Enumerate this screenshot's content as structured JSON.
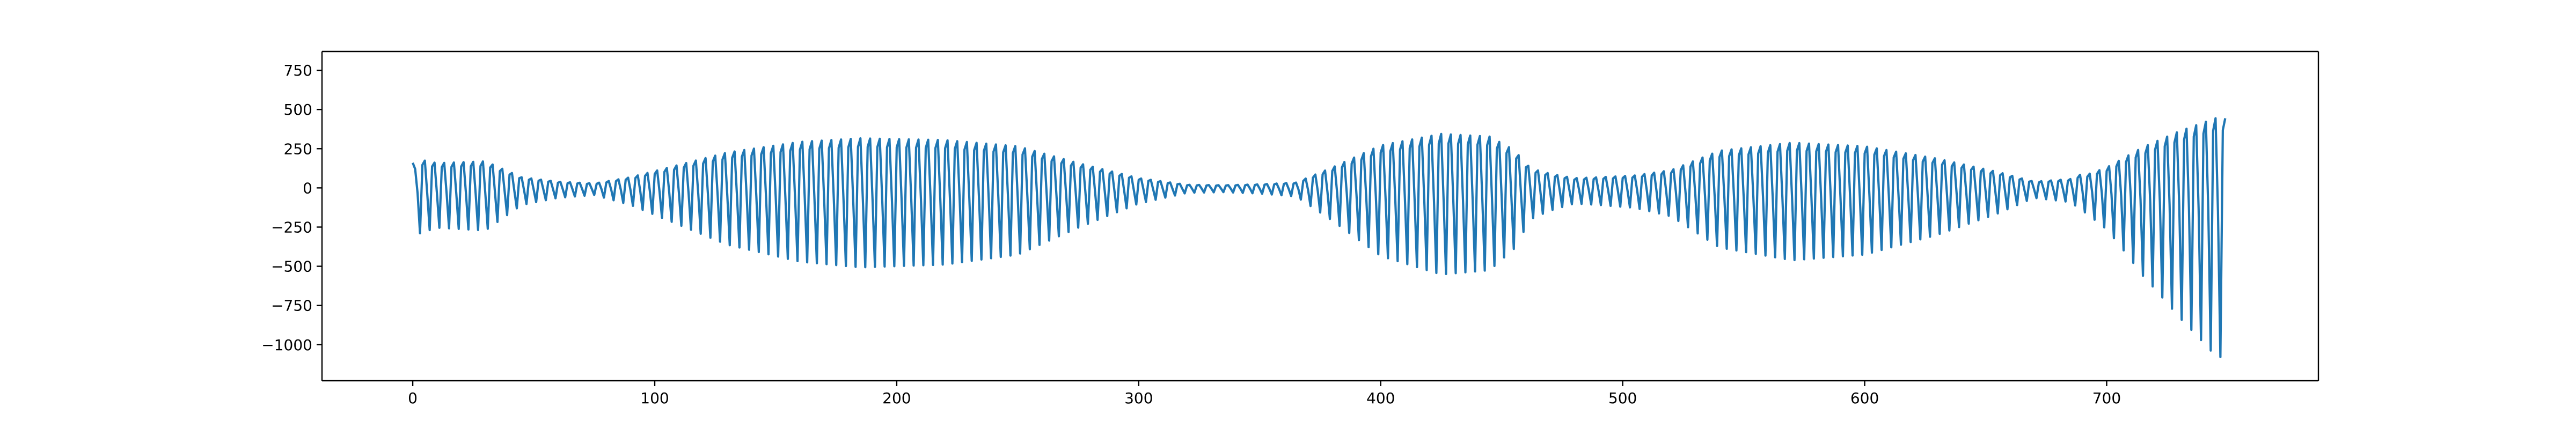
{
  "chart_data": {
    "type": "line",
    "title": "",
    "xlabel": "",
    "ylabel": "",
    "xlim": [
      -37.5,
      787.5
    ],
    "ylim": [
      -1230,
      870
    ],
    "x_ticks": [
      0,
      100,
      200,
      300,
      400,
      500,
      600,
      700
    ],
    "y_ticks": [
      750,
      500,
      250,
      0,
      -250,
      -500,
      -750,
      -1000
    ],
    "x_tick_labels": [
      "0",
      "100",
      "200",
      "300",
      "400",
      "500",
      "600",
      "700"
    ],
    "y_tick_labels": [
      "750",
      "500",
      "250",
      "0",
      "−250",
      "−500",
      "−750",
      "−1000"
    ],
    "grid": false,
    "legend": "none",
    "colors": {
      "series": "#1f77b4",
      "axes": "#000000",
      "background": "#ffffff"
    },
    "series": [
      {
        "x_start": 0,
        "x_end": 749,
        "samples": 750,
        "oscillation_period": 4,
        "envelope_points": [
          [
            0,
            160,
            0
          ],
          [
            3,
            320,
            0
          ],
          [
            10,
            280,
            0
          ],
          [
            30,
            300,
            0
          ],
          [
            45,
            120,
            0
          ],
          [
            60,
            70,
            0
          ],
          [
            75,
            50,
            0
          ],
          [
            90,
            120,
            0
          ],
          [
            110,
            260,
            0
          ],
          [
            130,
            400,
            0
          ],
          [
            160,
            520,
            0
          ],
          [
            185,
            560,
            0
          ],
          [
            220,
            540,
            0
          ],
          [
            250,
            470,
            0
          ],
          [
            275,
            280,
            0
          ],
          [
            300,
            110,
            0
          ],
          [
            320,
            35,
            0
          ],
          [
            335,
            30,
            0
          ],
          [
            350,
            40,
            0
          ],
          [
            365,
            60,
            0
          ],
          [
            380,
            230,
            0
          ],
          [
            400,
            480,
            0
          ],
          [
            425,
            610,
            0
          ],
          [
            445,
            580,
            0
          ],
          [
            455,
            430,
            0
          ],
          [
            462,
            220,
            0
          ],
          [
            470,
            160,
            0
          ],
          [
            480,
            110,
            0
          ],
          [
            490,
            120,
            0
          ],
          [
            505,
            140,
            0
          ],
          [
            520,
            200,
            0
          ],
          [
            540,
            420,
            0
          ],
          [
            570,
            510,
            0
          ],
          [
            600,
            470,
            0
          ],
          [
            630,
            330,
            0
          ],
          [
            655,
            180,
            0
          ],
          [
            670,
            70,
            0
          ],
          [
            685,
            100,
            0
          ],
          [
            700,
            280,
            0
          ],
          [
            715,
            560,
            0
          ],
          [
            730,
            780,
            0
          ],
          [
            745,
            960,
            0
          ],
          [
            749,
            960,
            0
          ]
        ]
      }
    ]
  }
}
